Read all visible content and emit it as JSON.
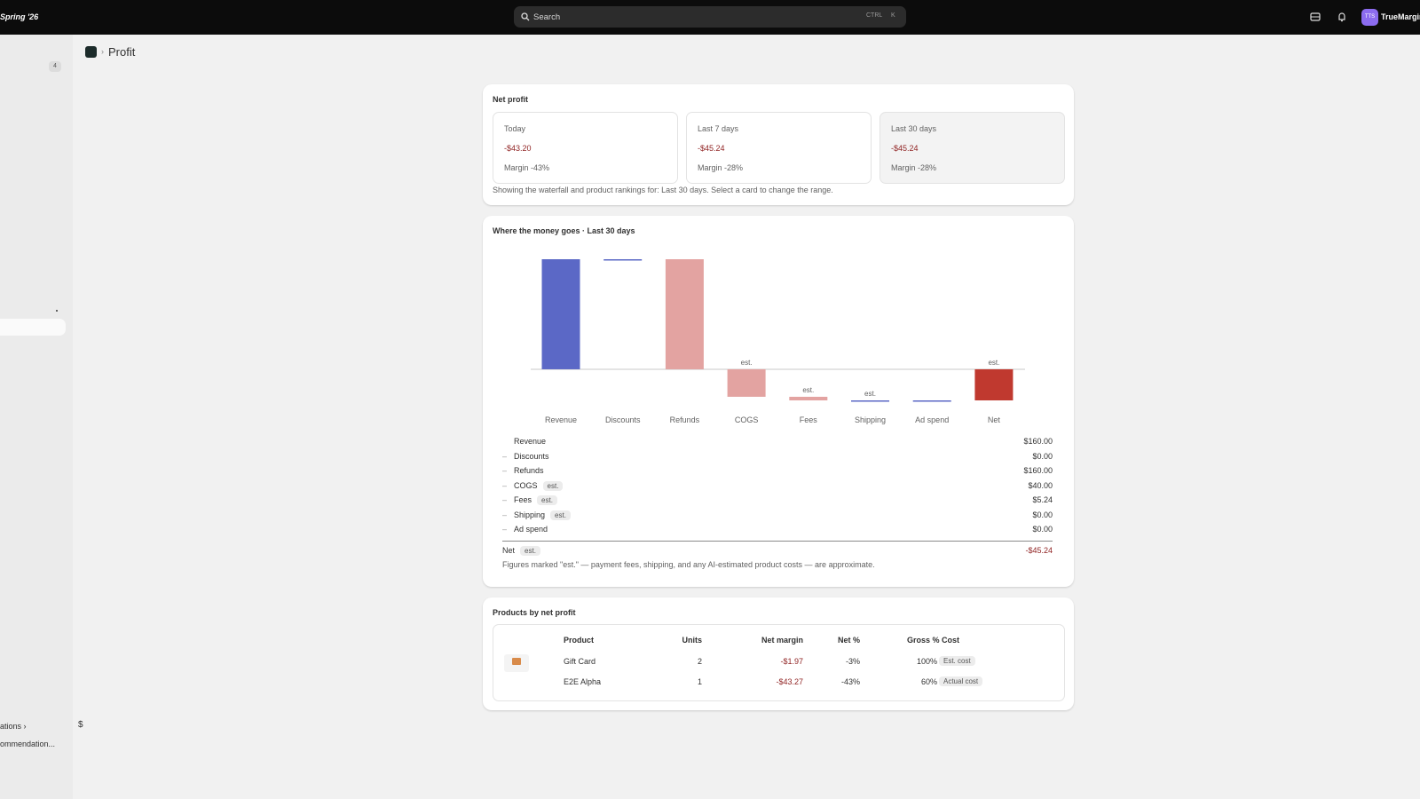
{
  "topbar": {
    "brand": "Spring '26",
    "search": "Search",
    "shortcut": [
      "CTRL",
      "K"
    ],
    "avatar": "TTS",
    "user": "TrueMargin"
  },
  "sidebar": {
    "badge": "4",
    "footer_items": [
      "ations",
      "ommendation..."
    ],
    "currency": "$"
  },
  "breadcrumb": {
    "title": "Profit"
  },
  "net_profit": {
    "title": "Net profit",
    "cards": [
      {
        "label": "Today",
        "value": "-$43.20",
        "margin": "Margin -43%"
      },
      {
        "label": "Last 7 days",
        "value": "-$45.24",
        "margin": "Margin -28%"
      },
      {
        "label": "Last 30 days",
        "value": "-$45.24",
        "margin": "Margin -28%"
      }
    ],
    "note": "Showing the waterfall and product rankings for: Last 30 days. Select a card to change the range."
  },
  "chart_data": {
    "type": "waterfall",
    "title": "Where the money goes · Last 30 days",
    "categories": [
      "Revenue",
      "Discounts",
      "Refunds",
      "COGS",
      "Fees",
      "Shipping",
      "Ad spend",
      "Net"
    ],
    "values": [
      160,
      0,
      -160,
      -40,
      -5.24,
      0,
      0,
      -45.24
    ],
    "measure": [
      "relative",
      "relative",
      "relative",
      "relative",
      "relative",
      "relative",
      "relative",
      "total"
    ],
    "colors": {
      "increase": "#5b68c6",
      "decrease": "#e3a3a1",
      "total": "#c0392f"
    },
    "annotations": [
      {
        "index": 3,
        "text": "est."
      },
      {
        "index": 4,
        "text": "est."
      },
      {
        "index": 5,
        "text": "est."
      },
      {
        "index": 7,
        "text": "est."
      }
    ]
  },
  "breakdown": {
    "rows": [
      {
        "sign": "",
        "label": "Revenue",
        "badge": "",
        "amount": "$160.00"
      },
      {
        "sign": "–",
        "label": "Discounts",
        "badge": "",
        "amount": "$0.00"
      },
      {
        "sign": "–",
        "label": "Refunds",
        "badge": "",
        "amount": "$160.00"
      },
      {
        "sign": "–",
        "label": "COGS",
        "badge": "est.",
        "amount": "$40.00"
      },
      {
        "sign": "–",
        "label": "Fees",
        "badge": "est.",
        "amount": "$5.24"
      },
      {
        "sign": "–",
        "label": "Shipping",
        "badge": "est.",
        "amount": "$0.00"
      },
      {
        "sign": "–",
        "label": "Ad spend",
        "badge": "",
        "amount": "$0.00"
      }
    ],
    "net": {
      "label": "Net",
      "badge": "est.",
      "amount": "-$45.24"
    },
    "footnote": "Figures marked \"est.\" — payment fees, shipping, and any AI-estimated product costs — are approximate."
  },
  "products": {
    "title": "Products by net profit",
    "headers": [
      "Product",
      "Units",
      "Net margin",
      "Net %",
      "Gross % Cost"
    ],
    "rows": [
      {
        "product": "Gift Card",
        "units": "2",
        "net_margin": "-$1.97",
        "net_pct": "-3%",
        "gross_pct": "100%",
        "cost": "Est. cost"
      },
      {
        "product": "E2E Alpha",
        "units": "1",
        "net_margin": "-$43.27",
        "net_pct": "-43%",
        "gross_pct": "60%",
        "cost": "Actual cost"
      }
    ]
  }
}
